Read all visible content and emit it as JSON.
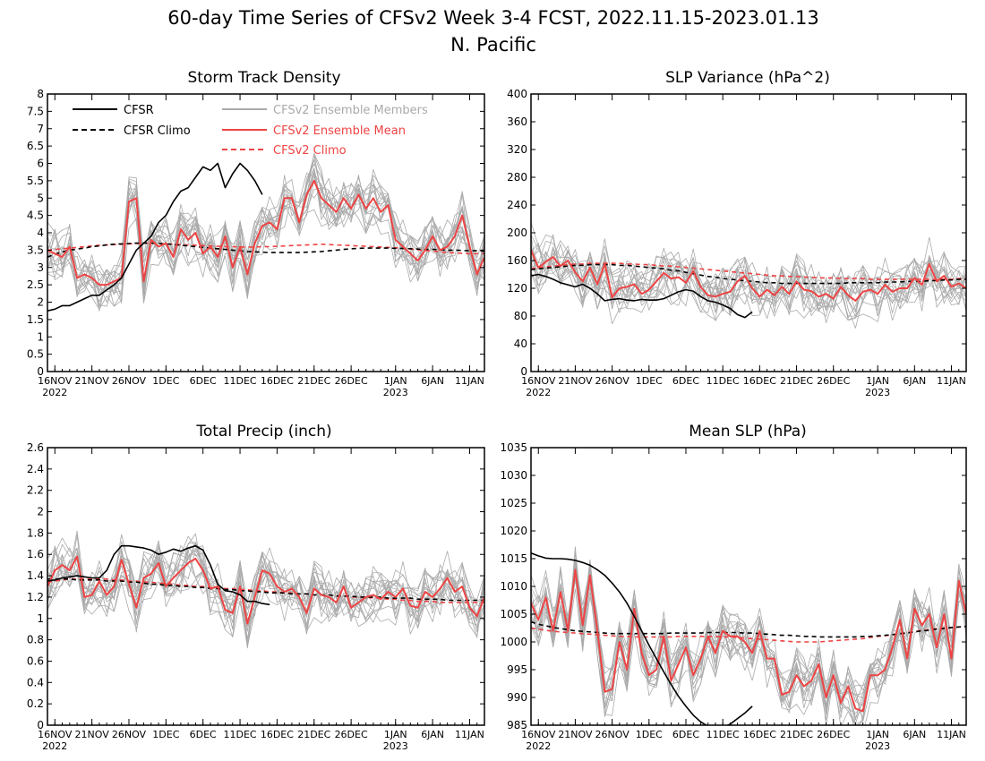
{
  "title": "60-day Time Series of CFSv2 Week 3-4 FCST, 2022.11.15-2023.01.13",
  "subtitle": "N. Pacific",
  "colors": {
    "cfsr": "#000000",
    "members": "#aaaaaa",
    "ens_mean": "#ee4444",
    "axes": "#000000"
  },
  "x_axis": {
    "tick_labels": [
      "16NOV",
      "21NOV",
      "26NOV",
      "1DEC",
      "6DEC",
      "11DEC",
      "16DEC",
      "21DEC",
      "26DEC",
      "1JAN",
      "6JAN",
      "11JAN"
    ],
    "tick_dates": [
      "2022-11-16",
      "2022-11-21",
      "2022-11-26",
      "2022-12-01",
      "2022-12-06",
      "2022-12-11",
      "2022-12-16",
      "2022-12-21",
      "2022-12-26",
      "2023-01-01",
      "2023-01-06",
      "2023-01-11"
    ],
    "year_labels": [
      {
        "text": "2022",
        "date": "2022-11-16"
      },
      {
        "text": "2023",
        "date": "2023-01-01"
      }
    ],
    "start_date": "2022-11-15",
    "end_date": "2023-01-13"
  },
  "legend": {
    "cfsr": "CFSR",
    "cfsr_climo": "CFSR Climo",
    "members": "CFSv2 Ensemble Members",
    "ens_mean": "CFSv2 Ensemble Mean",
    "cfsv2_climo": "CFSv2 Climo"
  },
  "chart_data": [
    {
      "type": "line",
      "title": "Storm Track Density",
      "ylim": [
        0,
        8
      ],
      "yticks": [
        "0",
        "0.5",
        "1",
        "1.5",
        "2",
        "2.5",
        "3",
        "3.5",
        "4",
        "4.5",
        "5",
        "5.5",
        "6",
        "6.5",
        "7",
        "7.5",
        "8"
      ],
      "legend_position": "top-left",
      "cfsr": [
        1.75,
        1.8,
        1.9,
        1.9,
        2.0,
        2.1,
        2.2,
        2.2,
        2.35,
        2.5,
        2.7,
        3.1,
        3.5,
        3.7,
        3.9,
        4.3,
        4.5,
        4.9,
        5.2,
        5.3,
        5.6,
        5.9,
        5.8,
        6.0,
        5.3,
        5.7,
        6.0,
        5.8,
        5.5,
        5.1
      ],
      "cfsr_climo": [
        3.3,
        3.38,
        3.45,
        3.5,
        3.53,
        3.56,
        3.6,
        3.62,
        3.65,
        3.67,
        3.68,
        3.69,
        3.7,
        3.7,
        3.7,
        3.69,
        3.68,
        3.66,
        3.64,
        3.62,
        3.6,
        3.58,
        3.56,
        3.54,
        3.52,
        3.5,
        3.48,
        3.46,
        3.45,
        3.44,
        3.43,
        3.43,
        3.43,
        3.43,
        3.43,
        3.44,
        3.45,
        3.46,
        3.48,
        3.5,
        3.52,
        3.54,
        3.55,
        3.56,
        3.56,
        3.56,
        3.56,
        3.55,
        3.55,
        3.54,
        3.53,
        3.52,
        3.52,
        3.51,
        3.5,
        3.5,
        3.49,
        3.48,
        3.48,
        3.47
      ],
      "ens_mean": [
        3.5,
        3.4,
        3.3,
        3.6,
        2.7,
        2.8,
        2.7,
        2.5,
        2.5,
        2.6,
        2.7,
        4.9,
        5.0,
        2.6,
        3.8,
        3.6,
        3.7,
        3.3,
        4.1,
        3.8,
        4.0,
        3.4,
        3.6,
        3.3,
        3.9,
        3.0,
        3.6,
        2.8,
        3.7,
        4.2,
        4.3,
        4.1,
        5.0,
        5.0,
        4.3,
        5.1,
        5.5,
        5.0,
        4.8,
        4.6,
        5.0,
        4.7,
        5.1,
        4.7,
        5.0,
        4.6,
        4.8,
        3.8,
        3.6,
        3.4,
        3.2,
        3.5,
        3.9,
        3.5,
        3.6,
        3.9,
        4.5,
        3.6,
        2.8,
        3.3
      ],
      "cfsv2_climo": [
        3.5,
        3.52,
        3.54,
        3.56,
        3.58,
        3.6,
        3.62,
        3.64,
        3.65,
        3.66,
        3.67,
        3.68,
        3.69,
        3.7,
        3.7,
        3.69,
        3.68,
        3.67,
        3.66,
        3.65,
        3.64,
        3.63,
        3.62,
        3.61,
        3.6,
        3.6,
        3.59,
        3.59,
        3.59,
        3.6,
        3.6,
        3.61,
        3.62,
        3.63,
        3.64,
        3.65,
        3.66,
        3.67,
        3.66,
        3.65,
        3.64,
        3.63,
        3.62,
        3.61,
        3.6,
        3.59,
        3.58,
        3.57,
        3.55,
        3.53,
        3.51,
        3.49,
        3.47,
        3.45,
        3.43,
        3.42,
        3.41,
        3.4,
        3.4,
        3.4
      ]
    },
    {
      "type": "line",
      "title": "SLP Variance (hPa^2)",
      "ylim": [
        0,
        400
      ],
      "yticks": [
        "0",
        "40",
        "80",
        "120",
        "160",
        "200",
        "240",
        "280",
        "320",
        "360",
        "400"
      ],
      "cfsr": [
        138,
        140,
        137,
        133,
        128,
        125,
        122,
        126,
        120,
        112,
        102,
        104,
        105,
        103,
        102,
        104,
        103,
        103,
        105,
        110,
        115,
        118,
        116,
        108,
        102,
        100,
        96,
        91,
        82,
        78,
        86
      ],
      "cfsr_climo": [
        147,
        148,
        149,
        150,
        151,
        152,
        153,
        153,
        154,
        154,
        154,
        154,
        153,
        153,
        152,
        151,
        150,
        149,
        148,
        146,
        145,
        143,
        141,
        139,
        137,
        136,
        134,
        133,
        132,
        131,
        130,
        129,
        128,
        128,
        127,
        127,
        127,
        127,
        127,
        127,
        127,
        127,
        127,
        128,
        128,
        128,
        128,
        128,
        129,
        129,
        129,
        130,
        130,
        130,
        131,
        131,
        132,
        132,
        133,
        133
      ],
      "ens_mean": [
        175,
        150,
        158,
        165,
        152,
        160,
        143,
        130,
        150,
        126,
        155,
        107,
        120,
        122,
        126,
        112,
        118,
        130,
        142,
        134,
        136,
        128,
        145,
        122,
        110,
        108,
        112,
        115,
        130,
        138,
        120,
        108,
        118,
        110,
        122,
        112,
        130,
        118,
        116,
        108,
        112,
        105,
        122,
        110,
        102,
        115,
        118,
        112,
        125,
        115,
        120,
        120,
        135,
        125,
        155,
        130,
        138,
        122,
        127,
        120
      ],
      "cfsv2_climo": [
        148,
        150,
        151,
        152,
        153,
        154,
        155,
        155,
        156,
        156,
        156,
        156,
        156,
        155,
        155,
        154,
        154,
        153,
        152,
        152,
        151,
        150,
        149,
        148,
        147,
        146,
        145,
        144,
        143,
        142,
        141,
        140,
        139,
        138,
        138,
        137,
        137,
        136,
        136,
        135,
        135,
        135,
        134,
        134,
        134,
        134,
        133,
        133,
        133,
        133,
        133,
        133,
        133,
        133,
        133,
        133,
        133,
        133,
        134,
        134
      ]
    },
    {
      "type": "line",
      "title": "Total Precip (inch)",
      "ylim": [
        0,
        2.6
      ],
      "yticks": [
        "0",
        "0.2",
        "0.4",
        "0.6",
        "0.8",
        "1",
        "1.2",
        "1.4",
        "1.6",
        "1.8",
        "2",
        "2.2",
        "2.4",
        "2.6"
      ],
      "cfsr": [
        1.35,
        1.36,
        1.38,
        1.39,
        1.4,
        1.39,
        1.38,
        1.38,
        1.45,
        1.6,
        1.68,
        1.68,
        1.67,
        1.66,
        1.64,
        1.6,
        1.62,
        1.65,
        1.63,
        1.66,
        1.68,
        1.64,
        1.5,
        1.32,
        1.26,
        1.25,
        1.22,
        1.16,
        1.16,
        1.14,
        1.13
      ],
      "cfsr_climo": [
        1.37,
        1.37,
        1.37,
        1.37,
        1.36,
        1.36,
        1.36,
        1.36,
        1.35,
        1.35,
        1.35,
        1.34,
        1.34,
        1.33,
        1.32,
        1.32,
        1.31,
        1.31,
        1.3,
        1.3,
        1.29,
        1.29,
        1.28,
        1.28,
        1.27,
        1.27,
        1.26,
        1.26,
        1.25,
        1.25,
        1.24,
        1.24,
        1.24,
        1.23,
        1.23,
        1.23,
        1.22,
        1.22,
        1.22,
        1.21,
        1.21,
        1.21,
        1.2,
        1.2,
        1.2,
        1.2,
        1.19,
        1.19,
        1.19,
        1.19,
        1.18,
        1.18,
        1.18,
        1.18,
        1.17,
        1.17,
        1.17,
        1.17,
        1.17,
        1.17
      ],
      "ens_mean": [
        1.3,
        1.45,
        1.5,
        1.45,
        1.58,
        1.2,
        1.22,
        1.35,
        1.22,
        1.3,
        1.55,
        1.32,
        1.1,
        1.38,
        1.42,
        1.52,
        1.3,
        1.38,
        1.45,
        1.52,
        1.56,
        1.45,
        1.28,
        1.3,
        1.08,
        1.05,
        1.3,
        0.95,
        1.2,
        1.45,
        1.42,
        1.3,
        1.25,
        1.28,
        1.2,
        1.05,
        1.28,
        1.22,
        1.2,
        1.15,
        1.3,
        1.1,
        1.15,
        1.2,
        1.22,
        1.18,
        1.25,
        1.2,
        1.28,
        1.12,
        1.1,
        1.25,
        1.2,
        1.28,
        1.38,
        1.25,
        1.3,
        1.1,
        1.02,
        1.2
      ],
      "cfsv2_climo": [
        1.34,
        1.35,
        1.36,
        1.37,
        1.37,
        1.37,
        1.37,
        1.37,
        1.37,
        1.36,
        1.36,
        1.35,
        1.35,
        1.34,
        1.34,
        1.33,
        1.33,
        1.32,
        1.31,
        1.31,
        1.3,
        1.3,
        1.29,
        1.29,
        1.28,
        1.28,
        1.27,
        1.27,
        1.26,
        1.26,
        1.25,
        1.25,
        1.24,
        1.24,
        1.23,
        1.23,
        1.22,
        1.22,
        1.22,
        1.21,
        1.21,
        1.2,
        1.2,
        1.2,
        1.19,
        1.19,
        1.18,
        1.18,
        1.17,
        1.17,
        1.16,
        1.16,
        1.16,
        1.15,
        1.15,
        1.15,
        1.15,
        1.15,
        1.15,
        1.15
      ]
    },
    {
      "type": "line",
      "title": "Mean SLP (hPa)",
      "ylim": [
        985,
        1035
      ],
      "yticks": [
        "985",
        "990",
        "995",
        "1000",
        "1005",
        "1010",
        "1015",
        "1020",
        "1025",
        "1030",
        "1035"
      ],
      "cfsr": [
        1016.0,
        1015.5,
        1015.1,
        1015.0,
        1015.0,
        1014.9,
        1014.7,
        1014.3,
        1013.8,
        1013.0,
        1012.0,
        1010.6,
        1009.0,
        1007.0,
        1004.6,
        1002.0,
        999.4,
        997.0,
        994.6,
        992.3,
        990.2,
        988.4,
        986.8,
        985.6,
        984.8,
        984.5,
        984.6,
        985.2,
        986.2,
        987.2,
        988.4
      ],
      "cfsr_climo": [
        1003.6,
        1003.2,
        1002.9,
        1002.6,
        1002.4,
        1002.2,
        1002.0,
        1001.9,
        1001.8,
        1001.7,
        1001.6,
        1001.5,
        1001.5,
        1001.5,
        1001.5,
        1001.5,
        1001.5,
        1001.5,
        1001.5,
        1001.6,
        1001.6,
        1001.6,
        1001.6,
        1001.6,
        1001.7,
        1001.7,
        1001.7,
        1001.7,
        1001.7,
        1001.6,
        1001.6,
        1001.5,
        1001.4,
        1001.3,
        1001.2,
        1001.2,
        1001.1,
        1001.0,
        1001.0,
        1000.9,
        1000.9,
        1000.9,
        1000.9,
        1000.9,
        1000.9,
        1001.0,
        1001.0,
        1001.1,
        1001.2,
        1001.3,
        1001.5,
        1001.6,
        1001.8,
        1002.0,
        1002.1,
        1002.3,
        1002.4,
        1002.6,
        1002.7,
        1002.8
      ],
      "ens_mean": [
        1007.0,
        1004.0,
        1008.0,
        1002.0,
        1009.0,
        1002.0,
        1013.0,
        1003.0,
        1012.0,
        1002.0,
        991.0,
        991.5,
        1000.0,
        995.0,
        1006.0,
        998.0,
        994.0,
        995.0,
        1001.0,
        993.0,
        996.0,
        999.0,
        994.0,
        997.0,
        1001.0,
        998.0,
        1002.0,
        1001.0,
        1001.0,
        1000.0,
        998.0,
        1002.0,
        997.0,
        997.0,
        990.5,
        991.0,
        994.0,
        992.0,
        993.0,
        996.0,
        990.0,
        994.0,
        989.0,
        992.0,
        988.0,
        987.5,
        994.0,
        994.0,
        995.0,
        999.0,
        1004.0,
        997.0,
        1006.0,
        1003.0,
        1005.0,
        999.0,
        1005.0,
        997.0,
        1011.0,
        1005.0
      ],
      "cfsv2_climo": [
        1002.5,
        1002.3,
        1002.1,
        1001.9,
        1001.8,
        1001.7,
        1001.6,
        1001.5,
        1001.4,
        1001.3,
        1001.2,
        1001.1,
        1001.0,
        1001.0,
        1000.9,
        1000.9,
        1000.9,
        1000.9,
        1000.9,
        1000.9,
        1001.0,
        1001.0,
        1001.0,
        1001.0,
        1001.0,
        1001.0,
        1000.9,
        1000.9,
        1000.8,
        1000.7,
        1000.6,
        1000.5,
        1000.4,
        1000.3,
        1000.2,
        1000.1,
        1000.0,
        1000.0,
        1000.0,
        1000.0,
        1000.1,
        1000.2,
        1000.3,
        1000.4,
        1000.5,
        1000.6,
        1000.8,
        1001.0,
        1001.1,
        1001.3,
        1001.5,
        1001.7,
        1001.9,
        1002.1,
        1002.2,
        1002.4,
        1002.5,
        1002.6,
        1002.7,
        1002.8
      ]
    }
  ]
}
